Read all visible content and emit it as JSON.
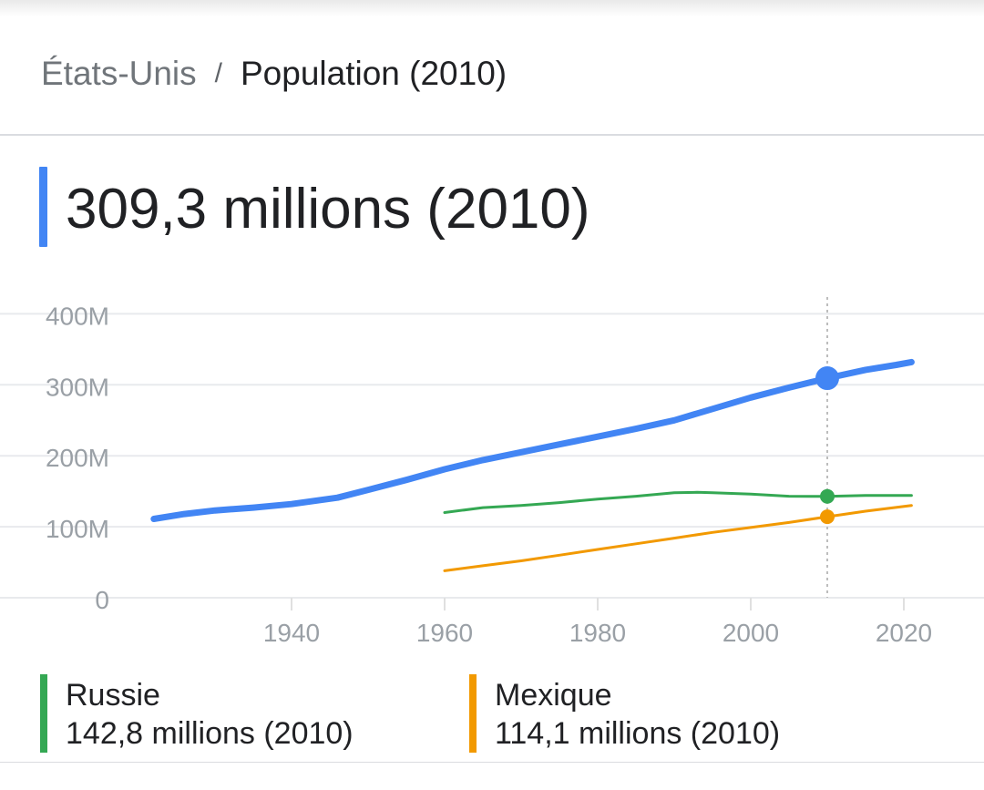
{
  "breadcrumb": {
    "parent": "États-Unis",
    "separator": "/",
    "current": "Population (2010)"
  },
  "headline": {
    "value": "309,3 millions (2010)",
    "color": "#4285f4"
  },
  "legend": [
    {
      "name": "Russie",
      "value": "142,8 millions (2010)",
      "color": "#34a853"
    },
    {
      "name": "Mexique",
      "value": "114,1 millions (2010)",
      "color": "#f29900"
    }
  ],
  "chart_data": {
    "type": "line",
    "title": "",
    "xlabel": "",
    "ylabel": "",
    "xlim": [
      1918,
      2027
    ],
    "ylim": [
      0,
      410
    ],
    "grid": true,
    "x_ticks": [
      1940,
      1960,
      1980,
      2000,
      2020
    ],
    "y_ticks": [
      0,
      100,
      200,
      300,
      400
    ],
    "y_tick_labels": [
      "0",
      "100M",
      "200M",
      "300M",
      "400M"
    ],
    "highlight_x": 2010,
    "series": [
      {
        "name": "États-Unis",
        "color": "#4285f4",
        "points": [
          [
            1922,
            111
          ],
          [
            1926,
            118
          ],
          [
            1930,
            123
          ],
          [
            1935,
            127
          ],
          [
            1940,
            132
          ],
          [
            1946,
            141
          ],
          [
            1950,
            152
          ],
          [
            1955,
            166
          ],
          [
            1960,
            181
          ],
          [
            1965,
            194
          ],
          [
            1970,
            205
          ],
          [
            1975,
            216
          ],
          [
            1980,
            227
          ],
          [
            1985,
            238
          ],
          [
            1990,
            250
          ],
          [
            1995,
            266
          ],
          [
            2000,
            282
          ],
          [
            2005,
            296
          ],
          [
            2010,
            309.3
          ],
          [
            2015,
            321
          ],
          [
            2019,
            328
          ],
          [
            2021,
            332
          ]
        ]
      },
      {
        "name": "Russie",
        "color": "#34a853",
        "points": [
          [
            1960,
            120
          ],
          [
            1965,
            127
          ],
          [
            1970,
            130
          ],
          [
            1975,
            134
          ],
          [
            1980,
            139
          ],
          [
            1985,
            143
          ],
          [
            1990,
            148
          ],
          [
            1993,
            148.5
          ],
          [
            1995,
            148
          ],
          [
            2000,
            146
          ],
          [
            2005,
            143
          ],
          [
            2010,
            142.8
          ],
          [
            2015,
            144
          ],
          [
            2021,
            144
          ]
        ]
      },
      {
        "name": "Mexique",
        "color": "#f29900",
        "points": [
          [
            1960,
            38
          ],
          [
            1965,
            45
          ],
          [
            1970,
            52
          ],
          [
            1975,
            60
          ],
          [
            1980,
            68
          ],
          [
            1985,
            76
          ],
          [
            1990,
            84
          ],
          [
            1995,
            92
          ],
          [
            2000,
            99
          ],
          [
            2005,
            106
          ],
          [
            2010,
            114.1
          ],
          [
            2015,
            122
          ],
          [
            2021,
            130
          ]
        ]
      }
    ]
  }
}
